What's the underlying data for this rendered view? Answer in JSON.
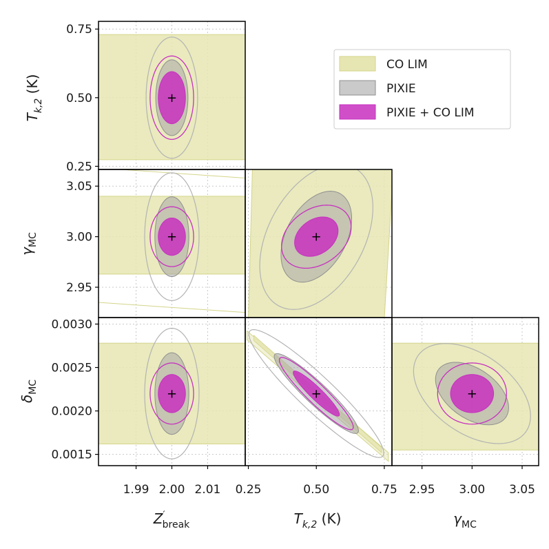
{
  "chart_data": {
    "type": "corner",
    "parameters": [
      {
        "key": "zb",
        "center": 2.0,
        "ticks": [
          "1.99",
          "2.00",
          "2.01"
        ],
        "tick_values": [
          1.99,
          2.0,
          2.01
        ],
        "range": [
          1.9795,
          2.0205
        ]
      },
      {
        "key": "tk",
        "center": 0.5,
        "ticks": [
          "0.25",
          "0.50",
          "0.75"
        ],
        "tick_values": [
          0.25,
          0.5,
          0.75
        ],
        "range": [
          0.2385,
          0.7781
        ]
      },
      {
        "key": "gm",
        "center": 3.0,
        "ticks": [
          "2.95",
          "3.00",
          "3.05"
        ],
        "tick_values": [
          2.95,
          3.0,
          3.05
        ],
        "range": [
          2.92,
          3.0665
        ]
      },
      {
        "key": "dm",
        "center": 0.0022,
        "ticks": [
          "0.0015",
          "0.0020",
          "0.0025",
          "0.0030"
        ],
        "tick_values": [
          0.0015,
          0.002,
          0.0025,
          0.003
        ],
        "range": [
          0.00137,
          0.003075
        ]
      }
    ],
    "y_axis_labels": {
      "tk_main": "T",
      "tk_sub": "k,2",
      "tk_unit": " (K)",
      "gm_main": "γ",
      "gm_sub": "MC",
      "dm_main": "δ",
      "dm_sub": "MC"
    },
    "x_axis_labels": {
      "zb_main": "Z",
      "zb_prime": "′",
      "zb_sub": "break",
      "tk_main": "T",
      "tk_sub": "k,2",
      "tk_unit": " (K)",
      "gm_main": "γ",
      "gm_sub": "MC"
    },
    "series": [
      {
        "name": "CO LIM",
        "fill": "#e6e6b3",
        "edge": "#d4d48a",
        "fill_opacity": 0.85
      },
      {
        "name": "PIXIE",
        "fill": "#a6a6a6",
        "edge": "#8f8f8f",
        "fill_opacity": 0.55
      },
      {
        "name": "PIXIE + CO LIM",
        "fill": "#c830c0",
        "edge": "#c830c0",
        "fill_opacity": 0.85
      }
    ],
    "panels": [
      {
        "id": "tk-vs-zb",
        "x": "zb",
        "y": "tk",
        "co_lim_band": {
          "y_lo": 0.274,
          "y_hi": 0.73
        },
        "pixie": {
          "sx": 0.0045,
          "sy": 0.138,
          "rho": 0.0
        },
        "combined": {
          "sx": 0.0038,
          "sy": 0.095,
          "rho": 0.0
        }
      },
      {
        "id": "gm-vs-zb",
        "x": "zb",
        "y": "gm",
        "co_lim_band": {
          "y_lo": 2.963,
          "y_hi": 3.04
        },
        "pixie": {
          "sx": 0.00475,
          "sy": 0.0395,
          "rho": 0.0
        },
        "combined": {
          "sx": 0.0038,
          "sy": 0.0185,
          "rho": 0.0
        }
      },
      {
        "id": "gm-vs-tk",
        "x": "tk",
        "y": "gm",
        "co_lim_band": {
          "x_lo": 0.25,
          "x_hi": 0.76
        },
        "pixie": {
          "sx": 0.13,
          "sy": 0.045,
          "rho": 0.4
        },
        "combined": {
          "sx": 0.08,
          "sy": 0.0195,
          "rho": 0.3
        }
      },
      {
        "id": "dm-vs-zb",
        "x": "zb",
        "y": "dm",
        "co_lim_band": {
          "y_lo": 0.00162,
          "y_hi": 0.00278
        },
        "pixie": {
          "sx": 0.00475,
          "sy": 0.00047,
          "rho": 0.0
        },
        "combined": {
          "sx": 0.0038,
          "sy": 0.00022,
          "rho": 0.0
        }
      },
      {
        "id": "dm-vs-tk",
        "x": "tk",
        "y": "dm",
        "co_lim_band": {
          "x_lo": 0.25,
          "x_hi": 0.76,
          "thin": true
        },
        "pixie": {
          "sx": 0.155,
          "sy": 0.00046,
          "rho": -0.93
        },
        "combined": {
          "sx": 0.085,
          "sy": 0.00026,
          "rho": -0.93
        }
      },
      {
        "id": "dm-vs-gm",
        "x": "gm",
        "y": "dm",
        "co_lim_band": {
          "y_lo": 0.00155,
          "y_hi": 0.00278
        },
        "pixie": {
          "sx": 0.0365,
          "sy": 0.00036,
          "rho": -0.45
        },
        "combined": {
          "sx": 0.0215,
          "sy": 0.00022,
          "rho": 0.0
        }
      }
    ],
    "fiducial_marker": "+"
  },
  "legend": {
    "items": [
      "CO LIM",
      "PIXIE",
      "PIXIE + CO LIM"
    ],
    "location": "top-right"
  }
}
